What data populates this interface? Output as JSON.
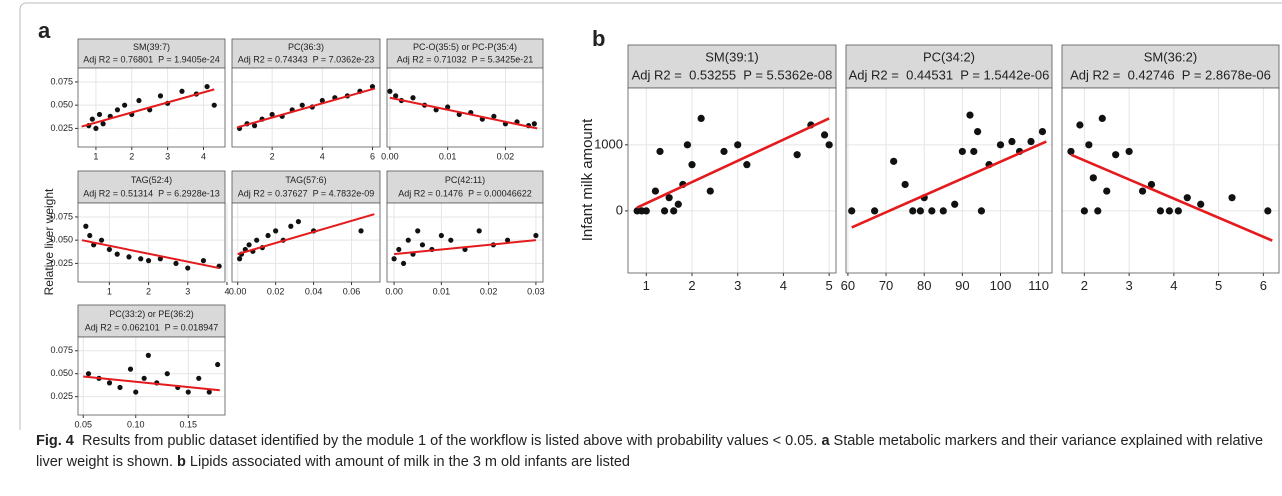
{
  "panels": {
    "a": {
      "label": "a",
      "ylabel": "Relative liver weight"
    },
    "b": {
      "label": "b",
      "ylabel": "Infant milk amount"
    }
  },
  "caption": {
    "figure": "Fig. 4",
    "text": "Results from public dataset identified by the module 1 of the workflow is listed above with probability values < 0.05.",
    "a": "a",
    "a_text": "Stable metabolic markers and their variance explained with relative liver weight is shown.",
    "b": "b",
    "b_text": "Lipids associated with amount of milk in the 3 m old infants are listed"
  },
  "chart_data": [
    {
      "type": "scatter",
      "title": "SM(39:7)",
      "subtitle": "Adj R2 = 0.76801  P = 1.9405e-24",
      "color": "#111111",
      "fit_color": "#e41a1c",
      "grid": true,
      "x": [
        0.8,
        0.9,
        1.0,
        1.1,
        1.2,
        1.4,
        1.6,
        1.8,
        2.0,
        2.2,
        2.5,
        2.8,
        3.0,
        3.4,
        3.8,
        4.1,
        4.3
      ],
      "values": [
        0.028,
        0.035,
        0.025,
        0.04,
        0.03,
        0.038,
        0.045,
        0.05,
        0.04,
        0.055,
        0.045,
        0.06,
        0.052,
        0.065,
        0.062,
        0.07,
        0.05
      ],
      "fit_x": [
        0.6,
        4.3
      ],
      "fit_y": [
        0.027,
        0.067
      ],
      "xlim": [
        0.5,
        4.6
      ],
      "xticks": [
        1,
        2,
        3,
        4
      ],
      "ylim": [
        0.005,
        0.09
      ],
      "yticks": [
        {
          "value": 0.025,
          "label": "0.025"
        },
        {
          "value": 0.05,
          "label": "0.050"
        },
        {
          "value": 0.075,
          "label": "0.075"
        }
      ]
    },
    {
      "type": "scatter",
      "title": "PC(36:3)",
      "subtitle": "Adj R2 = 0.74343  P = 7.0362e-23",
      "color": "#111111",
      "fit_color": "#e41a1c",
      "grid": true,
      "x": [
        0.7,
        1,
        1.3,
        1.6,
        2,
        2.4,
        2.8,
        3.2,
        3.6,
        4,
        4.5,
        5,
        5.5,
        6
      ],
      "values": [
        0.025,
        0.03,
        0.028,
        0.035,
        0.04,
        0.038,
        0.045,
        0.05,
        0.048,
        0.055,
        0.058,
        0.06,
        0.065,
        0.07
      ],
      "fit_x": [
        0.6,
        6.1
      ],
      "fit_y": [
        0.026,
        0.068
      ],
      "xlim": [
        0.4,
        6.3
      ],
      "xticks": [
        2,
        4,
        6
      ],
      "ylim": [
        0.005,
        0.09
      ],
      "yticks": [
        0.025,
        0.05,
        0.075
      ]
    },
    {
      "type": "scatter",
      "title": "PC-O(35:5) or PC-P(35:4)",
      "subtitle": "Adj R2 = 0.71032  P = 5.3425e-21",
      "color": "#111111",
      "fit_color": "#e41a1c",
      "grid": true,
      "x": [
        0.0,
        0.001,
        0.002,
        0.004,
        0.006,
        0.008,
        0.01,
        0.012,
        0.014,
        0.016,
        0.018,
        0.02,
        0.022,
        0.024,
        0.025
      ],
      "values": [
        0.065,
        0.06,
        0.055,
        0.058,
        0.05,
        0.045,
        0.048,
        0.04,
        0.042,
        0.035,
        0.038,
        0.03,
        0.032,
        0.028,
        0.03
      ],
      "fit_x": [
        0,
        0.0255
      ],
      "fit_y": [
        0.058,
        0.025
      ],
      "xlim": [
        -0.0005,
        0.0265
      ],
      "xticks": [
        {
          "value": 0,
          "label": "0.00"
        },
        0.01,
        0.02
      ],
      "ylim": [
        0.005,
        0.09
      ],
      "yticks": [
        0.025,
        0.05,
        0.075
      ]
    },
    {
      "type": "scatter",
      "title": "TAG(52:4)",
      "subtitle": "Adj R2 = 0.51314  P = 6.2928e-13",
      "color": "#111111",
      "fit_color": "#e41a1c",
      "grid": true,
      "x": [
        0.4,
        0.5,
        0.6,
        0.8,
        1.0,
        1.2,
        1.5,
        1.8,
        2.0,
        2.3,
        2.7,
        3.0,
        3.4,
        3.8
      ],
      "values": [
        0.065,
        0.055,
        0.045,
        0.05,
        0.04,
        0.035,
        0.032,
        0.03,
        0.028,
        0.03,
        0.025,
        0.02,
        0.028,
        0.022
      ],
      "fit_x": [
        0.3,
        3.8
      ],
      "fit_y": [
        0.05,
        0.02
      ],
      "xlim": [
        0.2,
        3.95
      ],
      "xticks": [
        1,
        2,
        3,
        4
      ],
      "ylim": [
        0.005,
        0.09
      ],
      "yticks": [
        {
          "value": 0.025,
          "label": "0.025"
        },
        {
          "value": 0.05,
          "label": "0.050"
        },
        {
          "value": 0.075,
          "label": "0.075"
        }
      ]
    },
    {
      "type": "scatter",
      "title": "TAG(57:6)",
      "subtitle": "Adj R2 = 0.37627  P = 4.7832e-09",
      "color": "#111111",
      "fit_color": "#e41a1c",
      "grid": true,
      "x": [
        0.001,
        0.002,
        0.004,
        0.006,
        0.008,
        0.01,
        0.013,
        0.016,
        0.02,
        0.024,
        0.028,
        0.032,
        0.04,
        0.065
      ],
      "values": [
        0.03,
        0.035,
        0.04,
        0.045,
        0.038,
        0.05,
        0.042,
        0.055,
        0.06,
        0.05,
        0.065,
        0.07,
        0.06,
        0.06
      ],
      "fit_x": [
        0,
        0.072
      ],
      "fit_y": [
        0.035,
        0.078
      ],
      "xlim": [
        -0.003,
        0.075
      ],
      "xticks": [
        {
          "value": 0,
          "label": "0.00"
        },
        0.02,
        0.04,
        0.06
      ],
      "ylim": [
        0.005,
        0.09
      ],
      "yticks": [
        0.025,
        0.05,
        0.075
      ]
    },
    {
      "type": "scatter",
      "title": "PC(42:11)",
      "subtitle": "Adj R2 = 0.1476  P = 0.00046622",
      "color": "#111111",
      "fit_color": "#e41a1c",
      "grid": true,
      "x": [
        0.0,
        0.001,
        0.002,
        0.003,
        0.004,
        0.005,
        0.006,
        0.008,
        0.01,
        0.012,
        0.015,
        0.018,
        0.021,
        0.024,
        0.03
      ],
      "values": [
        0.03,
        0.04,
        0.025,
        0.05,
        0.035,
        0.06,
        0.045,
        0.04,
        0.055,
        0.05,
        0.04,
        0.06,
        0.045,
        0.05,
        0.055
      ],
      "fit_x": [
        0,
        0.03
      ],
      "fit_y": [
        0.035,
        0.05
      ],
      "xlim": [
        -0.0015,
        0.0315
      ],
      "xticks": [
        {
          "value": 0,
          "label": "0.00"
        },
        0.01,
        0.02,
        0.03
      ],
      "ylim": [
        0.005,
        0.09
      ],
      "yticks": [
        0.025,
        0.05,
        0.075
      ]
    },
    {
      "type": "scatter",
      "title": "PC(33:2) or PE(36:2)",
      "subtitle": "Adj R2 = 0.062101  P = 0.018947",
      "color": "#111111",
      "fit_color": "#e41a1c",
      "grid": true,
      "x": [
        0.055,
        0.065,
        0.075,
        0.085,
        0.095,
        0.1,
        0.108,
        0.112,
        0.12,
        0.13,
        0.14,
        0.15,
        0.16,
        0.17,
        0.178
      ],
      "values": [
        0.05,
        0.045,
        0.04,
        0.035,
        0.055,
        0.03,
        0.045,
        0.07,
        0.04,
        0.05,
        0.035,
        0.03,
        0.045,
        0.03,
        0.06
      ],
      "fit_x": [
        0.05,
        0.18
      ],
      "fit_y": [
        0.047,
        0.032
      ],
      "xlim": [
        0.045,
        0.185
      ],
      "xticks": [
        0.05,
        {
          "value": 0.1,
          "label": "0.10"
        },
        0.15
      ],
      "ylim": [
        0.005,
        0.09
      ],
      "yticks": [
        {
          "value": 0.025,
          "label": "0.025"
        },
        {
          "value": 0.05,
          "label": "0.050"
        },
        {
          "value": 0.075,
          "label": "0.075"
        }
      ]
    },
    {
      "type": "scatter",
      "title": "SM(39:1)",
      "subtitle": "Adj R2 =  0.53255  P = 5.5362e-08",
      "color": "#111111",
      "fit_color": "#e41a1c",
      "grid": true,
      "x": [
        0.8,
        0.9,
        1.0,
        1.2,
        1.3,
        1.4,
        1.5,
        1.6,
        1.7,
        1.8,
        1.9,
        2.0,
        2.2,
        2.4,
        2.7,
        3.0,
        3.2,
        4.3,
        4.6,
        4.9,
        5.0
      ],
      "values": [
        0,
        0,
        0,
        300,
        900,
        0,
        200,
        0,
        100,
        400,
        1000,
        700,
        1400,
        300,
        900,
        1000,
        700,
        850,
        1300,
        1150,
        1000
      ],
      "fit_x": [
        0.8,
        5
      ],
      "fit_y": [
        50,
        1400
      ],
      "xlim": [
        0.6,
        5.15
      ],
      "xticks": [
        1,
        2,
        3,
        4,
        5
      ],
      "ylim": [
        -940,
        1860
      ],
      "yticks": [
        0,
        1000
      ]
    },
    {
      "type": "scatter",
      "title": "PC(34:2)",
      "subtitle": "Adj R2 =  0.44531  P = 1.5442e-06",
      "color": "#111111",
      "fit_color": "#e41a1c",
      "grid": true,
      "x": [
        61,
        67,
        72,
        75,
        77,
        79,
        80,
        82,
        85,
        88,
        90,
        92,
        93,
        94,
        95,
        97,
        100,
        103,
        105,
        108,
        111
      ],
      "values": [
        0,
        0,
        750,
        400,
        0,
        0,
        200,
        0,
        0,
        100,
        900,
        1450,
        900,
        1200,
        0,
        700,
        1000,
        1050,
        900,
        1050,
        1200
      ],
      "fit_x": [
        61,
        112
      ],
      "fit_y": [
        -250,
        1050
      ],
      "xlim": [
        59.5,
        113.5
      ],
      "xticks": [
        60,
        70,
        80,
        90,
        100,
        110
      ],
      "ylim": [
        -940,
        1860
      ],
      "yticks": [
        0,
        1000
      ]
    },
    {
      "type": "scatter",
      "title": "SM(36:2)",
      "subtitle": "Adj R2 =  0.42746  P = 2.8678e-06",
      "color": "#111111",
      "fit_color": "#e41a1c",
      "grid": true,
      "x": [
        1.7,
        1.9,
        2.0,
        2.1,
        2.2,
        2.3,
        2.4,
        2.5,
        2.7,
        3.0,
        3.3,
        3.5,
        3.7,
        3.9,
        4.1,
        4.3,
        4.6,
        5.3,
        6.1
      ],
      "values": [
        900,
        1300,
        0,
        1000,
        500,
        0,
        1400,
        300,
        850,
        900,
        300,
        400,
        0,
        0,
        0,
        200,
        100,
        200,
        0
      ],
      "fit_x": [
        1.7,
        6.2
      ],
      "fit_y": [
        850,
        -450
      ],
      "xlim": [
        1.5,
        6.35
      ],
      "xticks": [
        2,
        3,
        4,
        5,
        6
      ],
      "ylim": [
        -940,
        1860
      ],
      "yticks": [
        0,
        1000
      ]
    }
  ]
}
